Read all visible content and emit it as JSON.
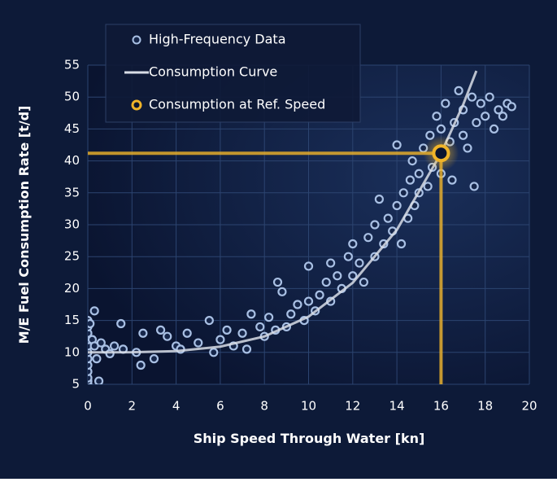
{
  "chart_data": {
    "type": "scatter",
    "xlabel": "Ship Speed Through Water [kn]",
    "ylabel": "M/E Fuel Consumption Rate [t/d]",
    "xlim": [
      0,
      20
    ],
    "xticks": [
      0,
      2,
      4,
      6,
      8,
      10,
      12,
      14,
      16,
      18,
      20
    ],
    "ylim": [
      5,
      55
    ],
    "yticks": [
      5,
      10,
      15,
      20,
      25,
      30,
      35,
      40,
      45,
      50,
      55
    ],
    "grid": true,
    "series": [
      {
        "name": "High-Frequency Data",
        "type": "scatter",
        "color": "#a9c0e4",
        "x": [
          0,
          0,
          0,
          0,
          0,
          0,
          0,
          0,
          0,
          0,
          0,
          0,
          0.1,
          0.2,
          0.3,
          0.4,
          0.5,
          0.3,
          0.6,
          0.8,
          1,
          1.2,
          1.5,
          1.6,
          2.2,
          2.4,
          2.5,
          3,
          3.3,
          3.6,
          4,
          4.2,
          4.5,
          5,
          5.5,
          5.7,
          6,
          6.3,
          6.6,
          7,
          7.2,
          7.4,
          7.8,
          8,
          8.2,
          8.5,
          8.6,
          8.8,
          9,
          9.2,
          9.5,
          9.8,
          10,
          10,
          10.3,
          10.5,
          10.8,
          11,
          11,
          11.3,
          11.5,
          11.8,
          12,
          12,
          12.3,
          12.5,
          12.7,
          13,
          13,
          13.2,
          13.4,
          13.6,
          13.8,
          14,
          14.2,
          14.3,
          14.5,
          14.6,
          14.8,
          15,
          15,
          14.7,
          15.2,
          15.4,
          15.5,
          15.6,
          15.8,
          16,
          16,
          16.2,
          16.4,
          16.5,
          16.6,
          16.8,
          17,
          17,
          17.2,
          17.4,
          17.6,
          17.8,
          18,
          18.2,
          18.4,
          18.6,
          18.8,
          19,
          19.2,
          17.5,
          14
        ],
        "values": [
          5,
          5.5,
          6,
          7,
          8,
          9,
          10,
          11,
          12,
          13,
          14,
          15,
          14.5,
          12,
          11,
          9,
          5.5,
          16.5,
          11.5,
          10.5,
          9.8,
          11,
          14.5,
          10.5,
          10,
          8,
          13,
          9,
          13.5,
          12.5,
          11,
          10.5,
          13,
          11.5,
          15,
          10,
          12,
          13.5,
          11,
          13,
          10.5,
          16,
          14,
          12.5,
          15.5,
          13.5,
          21,
          19.5,
          14,
          16,
          17.5,
          15,
          18,
          23.5,
          16.5,
          19,
          21,
          18,
          24,
          22,
          20,
          25,
          22,
          27,
          24,
          21,
          28,
          25,
          30,
          34,
          27,
          31,
          29,
          33,
          27,
          35,
          31,
          37,
          33,
          38,
          35,
          40,
          42,
          36,
          44,
          39,
          47,
          45,
          38,
          49,
          43,
          37,
          46,
          51,
          44,
          48,
          42,
          50,
          46,
          49,
          47,
          50,
          45,
          48,
          47,
          49,
          48.5,
          36,
          42.5
        ]
      },
      {
        "name": "Consumption Curve",
        "type": "line",
        "color": "#d8dde6",
        "x": [
          0,
          2,
          4,
          6,
          8,
          10,
          12,
          14,
          16,
          17,
          17.6
        ],
        "values": [
          10,
          10.02,
          10.2,
          10.9,
          12.5,
          15.6,
          20.9,
          29.2,
          41.2,
          48.8,
          54.1
        ]
      },
      {
        "name": "Consumption at Ref. Speed",
        "type": "point",
        "color": "#f0b429",
        "x": [
          16
        ],
        "values": [
          41.2
        ]
      }
    ]
  }
}
